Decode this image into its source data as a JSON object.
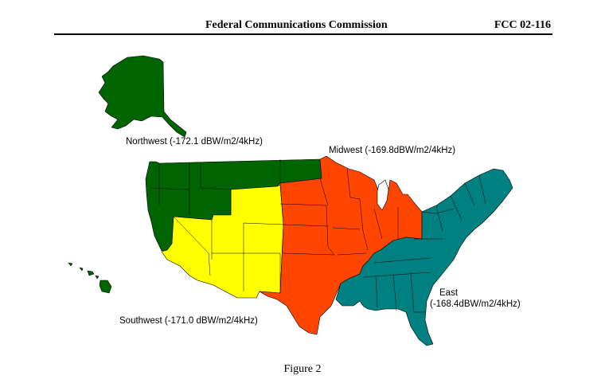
{
  "header": {
    "agency": "Federal Communications Commission",
    "doc_number": "FCC 02-116"
  },
  "map": {
    "regions": [
      {
        "name": "Northwest",
        "label": "Northwest (-172.1 dBW/m2/4kHz)",
        "color": "#006400"
      },
      {
        "name": "Midwest",
        "label": "Midwest (-169.8dBW/m2/4kHz)",
        "color": "#FF4500"
      },
      {
        "name": "Southwest",
        "label": "Southwest (-171.0 dBW/m2/4kHz)",
        "color": "#FFFF00"
      },
      {
        "name": "East",
        "label_line1": "East",
        "label_line2": "(-168.4dBW/m2/4kHz)",
        "color": "#008080"
      }
    ]
  },
  "caption": "Figure 2"
}
